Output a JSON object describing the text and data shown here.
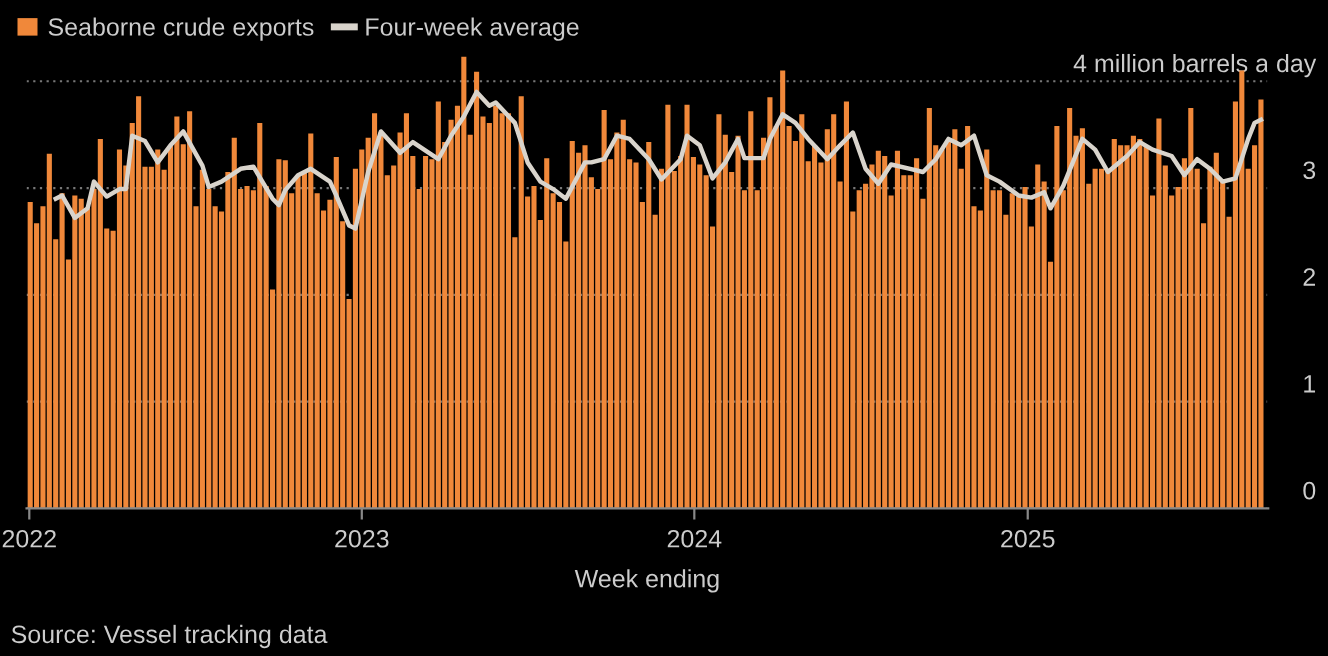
{
  "chart_data": {
    "type": "bar",
    "xlabel": "Week ending",
    "annotations": [
      "Source: Vessel tracking data"
    ],
    "legend": "top left",
    "grid": "y",
    "x": [
      "2022-01-02",
      "2022-01-09",
      "2022-01-16",
      "2022-01-23",
      "2022-01-30",
      "2022-02-06",
      "2022-02-13",
      "2022-02-20",
      "2022-02-27",
      "2022-03-06",
      "2022-03-13",
      "2022-03-20",
      "2022-03-27",
      "2022-04-03",
      "2022-04-10",
      "2022-04-17",
      "2022-04-24",
      "2022-05-01",
      "2022-05-08",
      "2022-05-15",
      "2022-05-22",
      "2022-05-29",
      "2022-06-05",
      "2022-06-12",
      "2022-06-19",
      "2022-06-26",
      "2022-07-03",
      "2022-07-10",
      "2022-07-17",
      "2022-07-24",
      "2022-07-31",
      "2022-08-07",
      "2022-08-14",
      "2022-08-21",
      "2022-08-28",
      "2022-09-04",
      "2022-09-11",
      "2022-09-18",
      "2022-09-25",
      "2022-10-02",
      "2022-10-09",
      "2022-10-16",
      "2022-10-23",
      "2022-10-30",
      "2022-11-06",
      "2022-11-13",
      "2022-11-20",
      "2022-11-27",
      "2022-12-04",
      "2022-12-11",
      "2022-12-18",
      "2022-12-25",
      "2023-01-01",
      "2023-01-08",
      "2023-01-15",
      "2023-01-22",
      "2023-01-29",
      "2023-02-05",
      "2023-02-12",
      "2023-02-19",
      "2023-02-26",
      "2023-03-05",
      "2023-03-12",
      "2023-03-19",
      "2023-03-26",
      "2023-04-02",
      "2023-04-09",
      "2023-04-16",
      "2023-04-23",
      "2023-04-30",
      "2023-05-07",
      "2023-05-14",
      "2023-05-21",
      "2023-05-28",
      "2023-06-04",
      "2023-06-11",
      "2023-06-18",
      "2023-06-25",
      "2023-07-02",
      "2023-07-09",
      "2023-07-16",
      "2023-07-23",
      "2023-07-30",
      "2023-08-06",
      "2023-08-13",
      "2023-08-20",
      "2023-08-27",
      "2023-09-03",
      "2023-09-10",
      "2023-09-17",
      "2023-09-24",
      "2023-10-01",
      "2023-10-08",
      "2023-10-15",
      "2023-10-22",
      "2023-10-29",
      "2023-11-05",
      "2023-11-12",
      "2023-11-19",
      "2023-11-26",
      "2023-12-03",
      "2023-12-10",
      "2023-12-17",
      "2023-12-24",
      "2023-12-31",
      "2024-01-07",
      "2024-01-14",
      "2024-01-21",
      "2024-01-28",
      "2024-02-04",
      "2024-02-11",
      "2024-02-18",
      "2024-02-25",
      "2024-03-03",
      "2024-03-10",
      "2024-03-17",
      "2024-03-24",
      "2024-03-31",
      "2024-04-07",
      "2024-04-14",
      "2024-04-21",
      "2024-04-28",
      "2024-05-05",
      "2024-05-12",
      "2024-05-19",
      "2024-05-26",
      "2024-06-02",
      "2024-06-09",
      "2024-06-16",
      "2024-06-23",
      "2024-06-30",
      "2024-07-07",
      "2024-07-14",
      "2024-07-21",
      "2024-07-28",
      "2024-08-04",
      "2024-08-11",
      "2024-08-18",
      "2024-08-25",
      "2024-09-01",
      "2024-09-08",
      "2024-09-15",
      "2024-09-22",
      "2024-09-29",
      "2024-10-06",
      "2024-10-13",
      "2024-10-20",
      "2024-10-27",
      "2024-11-03",
      "2024-11-10",
      "2024-11-17",
      "2024-11-24",
      "2024-12-01",
      "2024-12-08",
      "2024-12-15",
      "2024-12-22",
      "2024-12-29",
      "2025-01-05",
      "2025-01-12",
      "2025-01-19",
      "2025-01-26",
      "2025-02-02",
      "2025-02-09",
      "2025-02-16",
      "2025-02-23",
      "2025-03-02",
      "2025-03-09",
      "2025-03-16",
      "2025-03-23",
      "2025-03-30",
      "2025-04-06",
      "2025-04-13",
      "2025-04-20",
      "2025-04-27",
      "2025-05-04",
      "2025-05-11",
      "2025-05-18",
      "2025-05-25",
      "2025-06-01",
      "2025-06-08",
      "2025-06-15",
      "2025-06-22",
      "2025-06-29",
      "2025-07-06",
      "2025-07-13",
      "2025-07-20",
      "2025-07-27",
      "2025-08-03",
      "2025-08-10",
      "2025-08-17",
      "2025-08-24",
      "2025-08-31",
      "2025-09-07",
      "2025-09-14"
    ],
    "xlim": [
      "2021-12-29",
      "2025-09-22"
    ],
    "xticks": [
      {
        "value": "2022-01-01",
        "label": "2022"
      },
      {
        "value": "2023-01-01",
        "label": "2023"
      },
      {
        "value": "2024-01-01",
        "label": "2024"
      },
      {
        "value": "2025-01-01",
        "label": "2025"
      }
    ],
    "ylim": [
      0,
      4.3
    ],
    "yticks": [
      0,
      1,
      2,
      3,
      {
        "value": 4,
        "label": "4 million barrels a day"
      }
    ],
    "series": [
      {
        "name": "Seaborne crude exports",
        "color": "#f0883a",
        "values": [
          2.87,
          2.67,
          2.83,
          3.32,
          2.52,
          2.95,
          2.33,
          2.93,
          2.9,
          2.81,
          2.99,
          3.46,
          2.62,
          2.6,
          3.36,
          3.21,
          3.61,
          3.86,
          3.2,
          3.2,
          3.36,
          3.17,
          3.4,
          3.67,
          3.41,
          3.72,
          2.83,
          3.17,
          2.99,
          2.83,
          2.78,
          3.15,
          3.47,
          2.99,
          3.02,
          2.98,
          3.61,
          3.02,
          2.05,
          3.27,
          3.26,
          2.95,
          3.12,
          3.15,
          3.51,
          2.95,
          2.79,
          2.89,
          3.29,
          2.69,
          1.96,
          3.18,
          3.36,
          3.47,
          3.7,
          3.52,
          3.12,
          3.21,
          3.52,
          3.7,
          3.3,
          2.99,
          3.3,
          3.27,
          3.81,
          3.43,
          3.64,
          3.77,
          4.23,
          3.5,
          4.09,
          3.67,
          3.61,
          3.77,
          3.7,
          3.7,
          2.54,
          3.86,
          2.92,
          3.02,
          2.7,
          3.28,
          2.95,
          2.87,
          2.5,
          3.44,
          3.33,
          3.4,
          3.1,
          2.99,
          3.73,
          3.27,
          3.52,
          3.64,
          3.27,
          3.24,
          2.87,
          3.43,
          2.75,
          3.18,
          3.78,
          3.16,
          3.3,
          3.78,
          3.29,
          3.22,
          3.12,
          2.64,
          3.69,
          3.5,
          3.15,
          3.49,
          2.98,
          3.72,
          2.98,
          3.47,
          3.85,
          3.58,
          4.1,
          3.58,
          3.44,
          3.69,
          3.25,
          3.4,
          3.24,
          3.55,
          3.69,
          3.06,
          3.81,
          2.78,
          2.98,
          3.04,
          3.22,
          3.35,
          3.3,
          2.93,
          3.35,
          3.12,
          3.12,
          3.28,
          2.9,
          3.75,
          3.4,
          3.36,
          3.46,
          3.55,
          3.18,
          3.58,
          2.83,
          2.79,
          3.36,
          2.98,
          2.98,
          2.75,
          2.95,
          2.92,
          3.01,
          2.64,
          3.22,
          3.06,
          2.31,
          3.58,
          2.98,
          3.75,
          3.49,
          3.56,
          3.04,
          3.18,
          3.18,
          3.16,
          3.46,
          3.4,
          3.4,
          3.49,
          3.46,
          3.4,
          2.93,
          3.65,
          3.21,
          2.93,
          3.01,
          3.28,
          3.75,
          3.18,
          2.67,
          3.2,
          3.33,
          3.06,
          2.73,
          3.81,
          4.1,
          3.18,
          3.4,
          3.83
        ]
      },
      {
        "name": "Four-week average",
        "type": "line",
        "color": "#d9d4cc",
        "line_style": "solid",
        "x": [
          "2022-01-30",
          "2022-02-06",
          "2022-02-20",
          "2022-03-06",
          "2022-03-13",
          "2022-03-27",
          "2022-04-10",
          "2022-04-17",
          "2022-04-24",
          "2022-05-08",
          "2022-05-22",
          "2022-06-05",
          "2022-06-19",
          "2022-07-10",
          "2022-07-17",
          "2022-07-31",
          "2022-08-21",
          "2022-09-04",
          "2022-09-25",
          "2022-10-02",
          "2022-10-09",
          "2022-10-23",
          "2022-11-06",
          "2022-11-27",
          "2022-12-04",
          "2022-12-18",
          "2022-12-25",
          "2023-01-08",
          "2023-01-22",
          "2023-02-12",
          "2023-02-26",
          "2023-03-26",
          "2023-04-09",
          "2023-04-23",
          "2023-05-07",
          "2023-05-21",
          "2023-05-28",
          "2023-06-18",
          "2023-07-02",
          "2023-07-16",
          "2023-07-30",
          "2023-08-13",
          "2023-09-03",
          "2023-09-10",
          "2023-09-24",
          "2023-10-08",
          "2023-10-22",
          "2023-11-12",
          "2023-11-26",
          "2023-12-17",
          "2023-12-24",
          "2024-01-07",
          "2024-01-21",
          "2024-02-04",
          "2024-02-18",
          "2024-02-25",
          "2024-03-17",
          "2024-03-24",
          "2024-04-07",
          "2024-04-21",
          "2024-05-05",
          "2024-05-26",
          "2024-06-09",
          "2024-06-23",
          "2024-07-07",
          "2024-07-21",
          "2024-08-04",
          "2024-08-25",
          "2024-09-08",
          "2024-09-22",
          "2024-10-06",
          "2024-10-20",
          "2024-11-03",
          "2024-11-17",
          "2024-12-01",
          "2024-12-22",
          "2025-01-05",
          "2025-01-19",
          "2025-01-26",
          "2025-02-09",
          "2025-03-02",
          "2025-03-16",
          "2025-03-30",
          "2025-04-20",
          "2025-05-04",
          "2025-05-18",
          "2025-06-08",
          "2025-06-22",
          "2025-07-06",
          "2025-07-20",
          "2025-08-03",
          "2025-08-17",
          "2025-08-31",
          "2025-09-07",
          "2025-09-14"
        ],
        "values": [
          2.9,
          2.93,
          2.72,
          2.81,
          3.06,
          2.92,
          2.99,
          2.99,
          3.49,
          3.44,
          3.24,
          3.4,
          3.53,
          3.21,
          3.01,
          3.06,
          3.18,
          3.2,
          2.9,
          2.84,
          2.98,
          3.12,
          3.18,
          3.06,
          2.93,
          2.65,
          2.62,
          3.15,
          3.53,
          3.33,
          3.43,
          3.27,
          3.49,
          3.67,
          3.9,
          3.77,
          3.8,
          3.61,
          3.24,
          3.06,
          2.99,
          2.9,
          3.24,
          3.24,
          3.27,
          3.49,
          3.46,
          3.27,
          3.08,
          3.27,
          3.49,
          3.4,
          3.09,
          3.24,
          3.46,
          3.28,
          3.28,
          3.46,
          3.69,
          3.61,
          3.46,
          3.27,
          3.4,
          3.52,
          3.18,
          3.04,
          3.22,
          3.18,
          3.15,
          3.27,
          3.46,
          3.4,
          3.49,
          3.12,
          3.06,
          2.93,
          2.91,
          2.96,
          2.81,
          3.02,
          3.46,
          3.36,
          3.15,
          3.3,
          3.43,
          3.36,
          3.3,
          3.12,
          3.27,
          3.18,
          3.06,
          3.09,
          3.46,
          3.61,
          3.64
        ]
      }
    ]
  }
}
